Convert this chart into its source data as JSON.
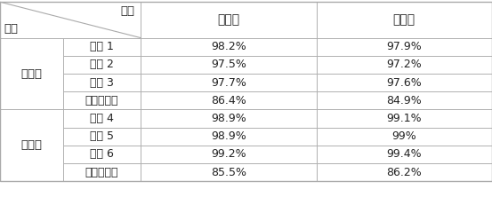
{
  "header_row": [
    "敏感度",
    "特异度"
  ],
  "diagonal_labels": [
    "结果",
    "方法"
  ],
  "groups": [
    {
      "group_label": "单导联",
      "rows": [
        [
          "实例 1",
          "98.2%",
          "97.9%"
        ],
        [
          "实例 2",
          "97.5%",
          "97.2%"
        ],
        [
          "实例 3",
          "97.7%",
          "97.6%"
        ],
        [
          "传统测量法",
          "86.4%",
          "84.9%"
        ]
      ]
    },
    {
      "group_label": "多导联",
      "rows": [
        [
          "实例 4",
          "98.9%",
          "99.1%"
        ],
        [
          "实例 5",
          "98.9%",
          "99%"
        ],
        [
          "实例 6",
          "99.2%",
          "99.4%"
        ],
        [
          "传统测量法",
          "85.5%",
          "86.2%"
        ]
      ]
    }
  ],
  "border_color": "#aaaaaa",
  "text_color": "#222222",
  "font_size": 9.0,
  "header_font_size": 10.0
}
